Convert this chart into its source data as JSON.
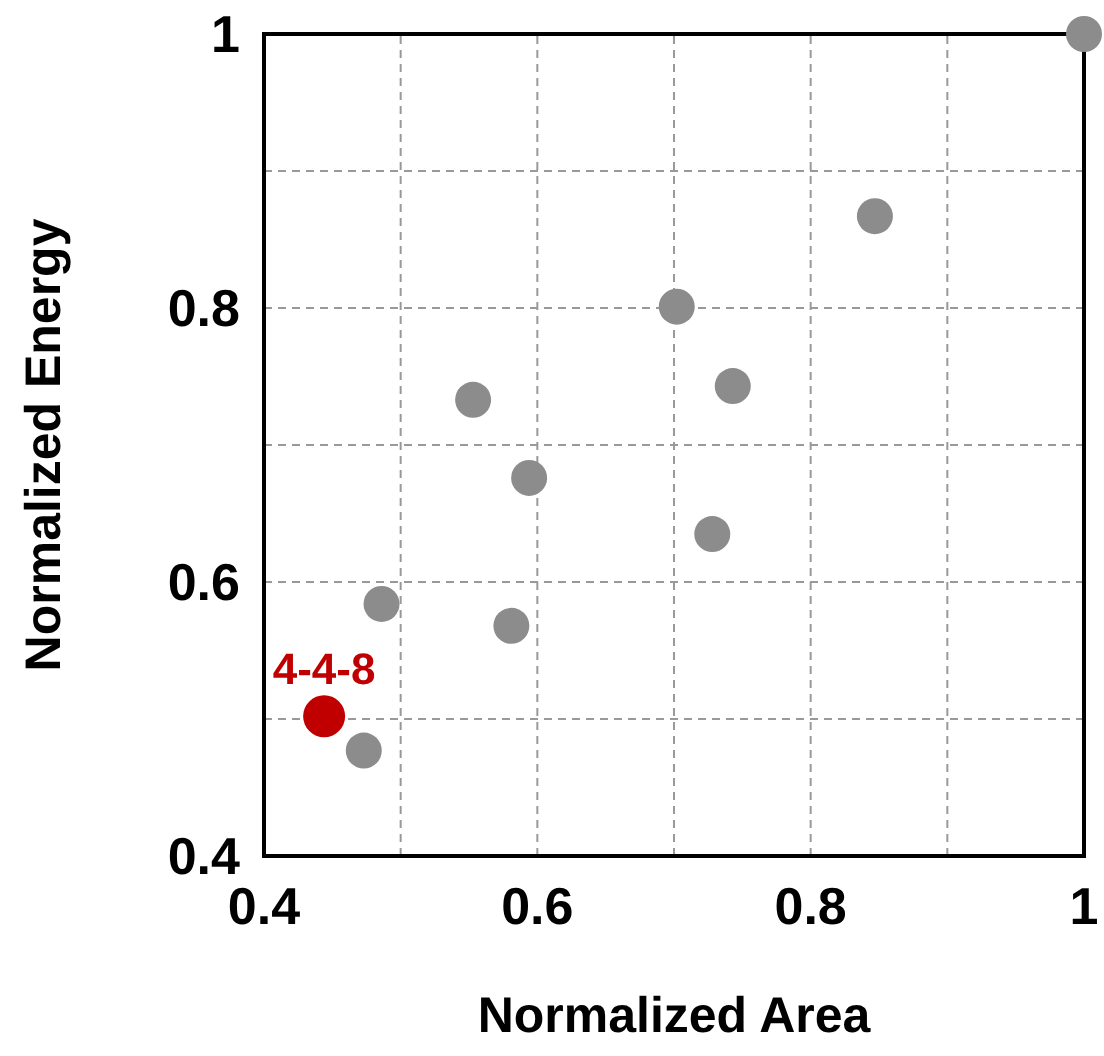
{
  "chart_data": {
    "type": "scatter",
    "xlabel": "Normalized Area",
    "ylabel": "Normalized Energy",
    "series": [
      {
        "color": "#8c8c8c",
        "x": [
          1,
          0.847,
          0.702,
          0.743,
          0.553,
          0.594,
          0.728,
          0.486,
          0.581,
          0.473
        ],
        "values": [
          1,
          0.867,
          0.801,
          0.743,
          0.733,
          0.676,
          0.635,
          0.584,
          0.568,
          0.477
        ]
      },
      {
        "color": "#c00000",
        "x": [
          0.444
        ],
        "values": [
          0.502
        ]
      }
    ],
    "annotations": [
      {
        "text": "4-4-8",
        "x": 0.444,
        "y": 0.502
      }
    ],
    "xlim": [
      0.4,
      1
    ],
    "ylim": [
      0.4,
      1
    ],
    "xticks": [
      0.4,
      {
        "value": 0.5,
        "label": null
      },
      0.6,
      {
        "value": 0.7,
        "label": null
      },
      0.8,
      {
        "value": 0.9,
        "label": null
      },
      1
    ],
    "yticks": [
      0.4,
      {
        "value": 0.5,
        "label": null
      },
      0.6,
      {
        "value": 0.7,
        "label": null
      },
      0.8,
      {
        "value": 0.9,
        "label": null
      },
      1
    ],
    "grid": true,
    "marker": "circle"
  }
}
